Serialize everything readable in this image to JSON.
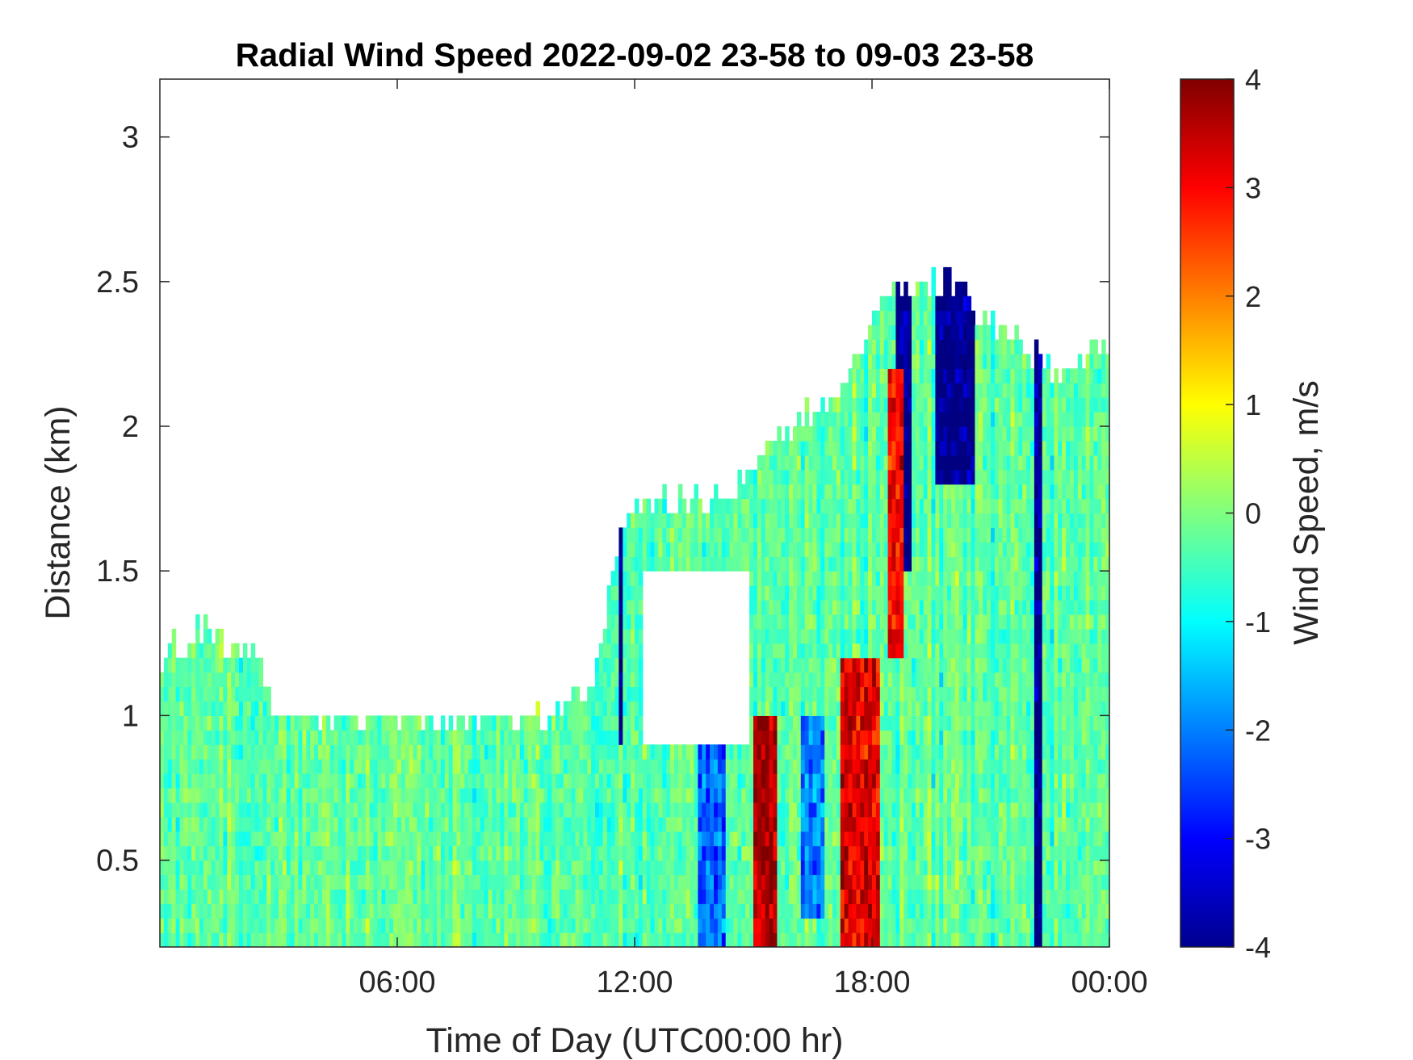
{
  "chart_data": {
    "type": "heatmap",
    "title": "Radial Wind Speed 2022-09-02 23-58 to 09-03 23-58",
    "xlabel": "Time of Day (UTC00:00 hr)",
    "ylabel": "Distance (km)",
    "colorbar_label": "Wind Speed, m/s",
    "colormap": "jet",
    "x_unit": "hours",
    "xlim": [
      0,
      24
    ],
    "ylim": [
      0.2,
      3.2
    ],
    "clim": [
      -4,
      4
    ],
    "x_ticks": [
      6,
      12,
      18,
      24
    ],
    "x_tick_labels": [
      "06:00",
      "12:00",
      "18:00",
      "00:00"
    ],
    "y_ticks": [
      0.5,
      1,
      1.5,
      2,
      2.5,
      3
    ],
    "y_tick_labels": [
      "0.5",
      "1",
      "1.5",
      "2",
      "2.5",
      "3"
    ],
    "colorbar_ticks": [
      4,
      3,
      2,
      1,
      0,
      -1,
      -2,
      -3,
      -4
    ],
    "colorbar_tick_labels": [
      "4",
      "3",
      "2",
      "1",
      "0",
      "-1",
      "-2",
      "-3",
      "-4"
    ],
    "valid_data_top_km": [
      [
        0,
        1.2
      ],
      [
        1,
        1.3
      ],
      [
        2,
        1.25
      ],
      [
        3,
        1.05
      ],
      [
        4,
        1.0
      ],
      [
        6,
        0.98
      ],
      [
        8,
        1.0
      ],
      [
        10,
        1.0
      ],
      [
        11,
        1.1
      ],
      [
        11.5,
        1.6
      ],
      [
        12,
        1.7
      ],
      [
        13,
        1.75
      ],
      [
        14.5,
        1.8
      ],
      [
        16,
        2.0
      ],
      [
        17,
        2.1
      ],
      [
        18,
        2.35
      ],
      [
        19,
        2.5
      ],
      [
        20,
        2.5
      ],
      [
        21,
        2.35
      ],
      [
        22,
        2.25
      ],
      [
        23,
        2.2
      ],
      [
        24,
        2.3
      ]
    ],
    "clear_air_gaps": [
      {
        "time_h": [
          2.8,
          9.5
        ],
        "distance_km": [
          1.0,
          3.2
        ]
      },
      {
        "time_h": [
          12.2,
          14.9
        ],
        "distance_km": [
          0.9,
          1.5
        ]
      }
    ],
    "features": [
      {
        "time_h": [
          15.0,
          15.6
        ],
        "distance_km": [
          0.2,
          1.0
        ],
        "speed_ms": 3.5
      },
      {
        "time_h": [
          17.2,
          18.2
        ],
        "distance_km": [
          0.2,
          1.2
        ],
        "speed_ms": 3.2
      },
      {
        "time_h": [
          18.4,
          18.8
        ],
        "distance_km": [
          1.2,
          2.2
        ],
        "speed_ms": 3.0
      },
      {
        "time_h": [
          13.6,
          14.3
        ],
        "distance_km": [
          0.2,
          0.9
        ],
        "speed_ms": -2.2
      },
      {
        "time_h": [
          16.2,
          16.8
        ],
        "distance_km": [
          0.3,
          1.0
        ],
        "speed_ms": -2.0
      },
      {
        "time_h": [
          18.6,
          19.0
        ],
        "distance_km": [
          1.5,
          3.2
        ],
        "speed_ms": -4.0
      },
      {
        "time_h": [
          19.6,
          20.6
        ],
        "distance_km": [
          1.8,
          3.2
        ],
        "speed_ms": -4.0
      },
      {
        "time_h": [
          22.1,
          22.3
        ],
        "distance_km": [
          0.2,
          3.2
        ],
        "speed_ms": -4.0
      },
      {
        "time_h": [
          11.6,
          11.65
        ],
        "distance_km": [
          0.9,
          3.2
        ],
        "speed_ms": -4.0
      }
    ]
  }
}
